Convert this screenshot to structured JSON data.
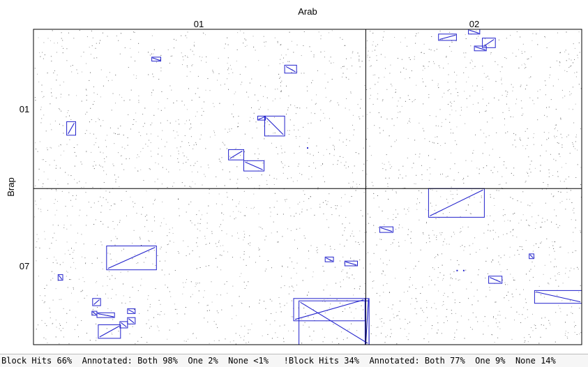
{
  "chart_data": {
    "type": "scatter",
    "title": "",
    "xlabel": "Arab",
    "ylabel": "Brap",
    "x_chromosomes": [
      {
        "name": "01",
        "length": 100
      },
      {
        "name": "02",
        "length": 65
      }
    ],
    "y_chromosomes": [
      {
        "name": "01",
        "length": 100
      },
      {
        "name": "07",
        "length": 98
      }
    ],
    "grid": false,
    "dot_density": 2800,
    "colors": {
      "blocks": "#2222cc",
      "dots": "#333333",
      "frame": "#000000"
    },
    "blocks": [
      {
        "x": [
          35.6,
          38.3
        ],
        "y": [
          17.5,
          20.0
        ],
        "orient": "+"
      },
      {
        "x": [
          75.6,
          79.2
        ],
        "y": [
          22.5,
          27.5
        ],
        "orient": "+"
      },
      {
        "x": [
          10.0,
          12.7
        ],
        "y": [
          58.0,
          66.5
        ],
        "orient": "-"
      },
      {
        "x": [
          67.5,
          69.8
        ],
        "y": [
          54.5,
          57.0
        ],
        "orient": "-"
      },
      {
        "x": [
          69.6,
          75.6
        ],
        "y": [
          54.5,
          67.0
        ],
        "orient": "+"
      },
      {
        "x": [
          58.7,
          63.3
        ],
        "y": [
          75.5,
          82.0
        ],
        "orient": "-"
      },
      {
        "x": [
          63.3,
          69.4
        ],
        "y": [
          82.5,
          89.0
        ],
        "orient": "+"
      },
      {
        "x": [
          121.9,
          127.3
        ],
        "y": [
          3.0,
          7.0
        ],
        "orient": "-"
      },
      {
        "x": [
          130.9,
          134.3
        ],
        "y": [
          0.0,
          3.0
        ],
        "orient": "+"
      },
      {
        "x": [
          132.7,
          136.3
        ],
        "y": [
          10.5,
          13.5
        ],
        "orient": "+"
      },
      {
        "x": [
          135.1,
          139.0
        ],
        "y": [
          5.5,
          11.5
        ],
        "orient": "-"
      },
      {
        "x": [
          19.1,
          24.4
        ],
        "y": [
          178.0,
          181.0
        ],
        "orient": "+"
      },
      {
        "x": [
          17.6,
          19.1
        ],
        "y": [
          177.0,
          179.5
        ],
        "orient": "+"
      },
      {
        "x": [
          19.5,
          26.2
        ],
        "y": [
          185.5,
          194.0
        ],
        "orient": "-"
      },
      {
        "x": [
          26.0,
          28.3
        ],
        "y": [
          183.5,
          187.5
        ],
        "orient": "+"
      },
      {
        "x": [
          28.3,
          30.6
        ],
        "y": [
          181.0,
          185.0
        ],
        "orient": "+"
      },
      {
        "x": [
          28.3,
          30.6
        ],
        "y": [
          175.5,
          178.5
        ],
        "orient": "+"
      },
      {
        "x": [
          17.8,
          20.2
        ],
        "y": [
          169.0,
          173.5
        ],
        "orient": "-"
      },
      {
        "x": [
          7.4,
          8.8
        ],
        "y": [
          154.0,
          157.5
        ],
        "orient": "+"
      },
      {
        "x": [
          22.0,
          37.0
        ],
        "y": [
          136.0,
          151.0
        ],
        "orient": "-"
      },
      {
        "x": [
          87.8,
          90.3
        ],
        "y": [
          143.0,
          146.0
        ],
        "orient": "+"
      },
      {
        "x": [
          93.7,
          97.5
        ],
        "y": [
          145.5,
          148.5
        ],
        "orient": "+"
      },
      {
        "x": [
          78.3,
          99.8
        ],
        "y": [
          169.0,
          183.0
        ],
        "orient": "-"
      },
      {
        "x": [
          79.9,
          101.0
        ],
        "y": [
          170.5,
          198.0
        ],
        "orient": "+"
      },
      {
        "x": [
          99.8,
          101.0
        ],
        "y": [
          198.0,
          169.0
        ],
        "orient": "-"
      },
      {
        "x": [
          118.9,
          135.7
        ],
        "y": [
          100.0,
          118.0
        ],
        "orient": "-"
      },
      {
        "x": [
          104.2,
          108.2
        ],
        "y": [
          124.0,
          127.5
        ],
        "orient": "+"
      },
      {
        "x": [
          149.2,
          150.6
        ],
        "y": [
          141.0,
          144.0
        ],
        "orient": "+"
      },
      {
        "x": [
          137.0,
          141.0
        ],
        "y": [
          155.0,
          159.5
        ],
        "orient": "+"
      },
      {
        "x": [
          150.8,
          165.0
        ],
        "y": [
          164.0,
          172.0
        ],
        "orient": "+"
      }
    ],
    "points": [
      {
        "x": 82.5,
        "y": 74.5
      },
      {
        "x": 127.5,
        "y": 151.5
      },
      {
        "x": 129.5,
        "y": 151.5
      }
    ]
  },
  "stats": {
    "block_hits": "Block Hits 66%",
    "annotated_in": "Annotated: Both 98%  One 2%  None <1%",
    "not_block_hits": "!Block Hits 34%",
    "annotated_out": "Annotated: Both 77%  One 9%  None 14%"
  }
}
